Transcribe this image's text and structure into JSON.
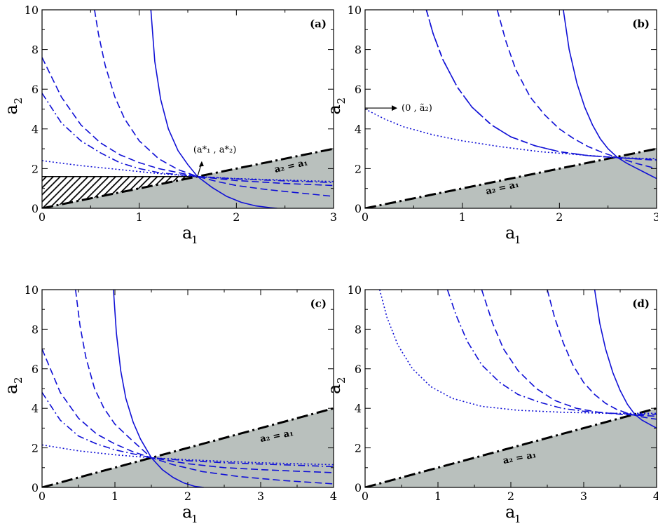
{
  "colors": {
    "curve": "#1010d6",
    "shade": "#b9c0bd",
    "frame": "#000000",
    "diag": "#000000"
  },
  "chart_data": [
    {
      "type": "line",
      "panel_label": "(a)",
      "xlabel": "a",
      "xlabel_sub": "1",
      "ylabel": "a",
      "ylabel_sub": "2",
      "xlim": [
        0,
        3
      ],
      "ylim": [
        0,
        10
      ],
      "xticks": [
        "0",
        "1",
        "2",
        "3"
      ],
      "yticks": [
        "0",
        "2",
        "4",
        "6",
        "8",
        "10"
      ],
      "diagonal_label": "a₂ = a₁",
      "hatched_region": {
        "x_from": 0,
        "x_to": 1.6,
        "y_max": 1.6
      },
      "annotation": "(a*₁ , a*₂)",
      "series": [
        {
          "style": "solid",
          "x": [
            1.12,
            1.16,
            1.22,
            1.3,
            1.4,
            1.5,
            1.6,
            1.75,
            1.9,
            2.05,
            2.2,
            2.35,
            2.42
          ],
          "y": [
            10.0,
            7.4,
            5.5,
            4.0,
            2.9,
            2.2,
            1.6,
            1.05,
            0.6,
            0.3,
            0.12,
            0.03,
            0.0
          ]
        },
        {
          "style": "dashed",
          "x": [
            0.54,
            0.58,
            0.65,
            0.75,
            0.85,
            1.0,
            1.2,
            1.4,
            1.6,
            1.8,
            2.0,
            2.3,
            2.6,
            3.0
          ],
          "y": [
            10.0,
            8.8,
            7.2,
            5.6,
            4.5,
            3.4,
            2.5,
            1.95,
            1.6,
            1.35,
            1.15,
            0.95,
            0.8,
            0.6
          ]
        },
        {
          "style": "dashed",
          "x": [
            0.0,
            0.2,
            0.4,
            0.6,
            0.8,
            1.0,
            1.2,
            1.4,
            1.6,
            2.0,
            2.5,
            3.0
          ],
          "y": [
            7.6,
            5.6,
            4.2,
            3.3,
            2.7,
            2.3,
            2.0,
            1.8,
            1.6,
            1.4,
            1.25,
            1.15
          ]
        },
        {
          "style": "dashdot",
          "x": [
            0.0,
            0.2,
            0.4,
            0.6,
            0.8,
            1.0,
            1.2,
            1.4,
            1.6,
            2.0,
            2.5,
            3.0
          ],
          "y": [
            5.8,
            4.3,
            3.4,
            2.8,
            2.3,
            2.0,
            1.8,
            1.7,
            1.6,
            1.48,
            1.38,
            1.3
          ]
        },
        {
          "style": "dotted",
          "x": [
            0.0,
            0.4,
            0.8,
            1.2,
            1.6,
            2.0,
            2.5,
            3.0
          ],
          "y": [
            2.4,
            2.15,
            1.95,
            1.75,
            1.6,
            1.5,
            1.42,
            1.35
          ]
        }
      ]
    },
    {
      "type": "line",
      "panel_label": "(b)",
      "xlabel": "a",
      "xlabel_sub": "1",
      "ylabel": "a",
      "ylabel_sub": "2",
      "xlim": [
        0,
        3
      ],
      "ylim": [
        0,
        10
      ],
      "xticks": [
        "0",
        "1",
        "2",
        "3"
      ],
      "yticks": [
        "0",
        "2",
        "4",
        "6",
        "8",
        "10"
      ],
      "diagonal_label": "a₂ = a₁",
      "annotation": "(0 , ã₂)",
      "series": [
        {
          "style": "solid",
          "x": [
            2.04,
            2.1,
            2.18,
            2.26,
            2.34,
            2.42,
            2.5,
            2.6,
            2.7,
            2.8,
            2.9,
            3.0
          ],
          "y": [
            10.0,
            8.0,
            6.3,
            5.1,
            4.2,
            3.5,
            3.0,
            2.55,
            2.25,
            2.0,
            1.75,
            1.5
          ]
        },
        {
          "style": "dashed",
          "x": [
            1.36,
            1.45,
            1.55,
            1.7,
            1.85,
            2.0,
            2.15,
            2.3,
            2.45,
            2.6,
            2.8,
            3.0
          ],
          "y": [
            10.0,
            8.4,
            7.0,
            5.6,
            4.7,
            4.0,
            3.5,
            3.1,
            2.8,
            2.55,
            2.25,
            2.0
          ]
        },
        {
          "style": "dashed",
          "x": [
            0.63,
            0.7,
            0.8,
            0.95,
            1.1,
            1.3,
            1.5,
            1.75,
            2.0,
            2.3,
            2.6,
            3.0
          ],
          "y": [
            10.0,
            8.8,
            7.5,
            6.1,
            5.1,
            4.2,
            3.6,
            3.15,
            2.85,
            2.65,
            2.55,
            2.42
          ]
        },
        {
          "style": "dashdot",
          "x": [
            0.63,
            0.7,
            0.8,
            0.95,
            1.1,
            1.3,
            1.5,
            1.75,
            2.0,
            2.3,
            2.6,
            3.0
          ],
          "y": [
            10.0,
            8.8,
            7.5,
            6.1,
            5.1,
            4.2,
            3.6,
            3.15,
            2.85,
            2.65,
            2.55,
            2.45
          ]
        },
        {
          "style": "dotted",
          "x": [
            0.0,
            0.2,
            0.4,
            0.7,
            1.0,
            1.4,
            1.8,
            2.2,
            2.6,
            3.0
          ],
          "y": [
            5.0,
            4.5,
            4.1,
            3.7,
            3.4,
            3.1,
            2.85,
            2.7,
            2.55,
            2.5
          ]
        }
      ]
    },
    {
      "type": "line",
      "panel_label": "(c)",
      "xlabel": "a",
      "xlabel_sub": "1",
      "ylabel": "a",
      "ylabel_sub": "2",
      "xlim": [
        0,
        4
      ],
      "ylim": [
        0,
        10
      ],
      "xticks": [
        "0",
        "1",
        "2",
        "3",
        "4"
      ],
      "yticks": [
        "0",
        "2",
        "4",
        "6",
        "8",
        "10"
      ],
      "diagonal_label": "a₂ = a₁",
      "series": [
        {
          "style": "solid",
          "x": [
            0.98,
            1.02,
            1.08,
            1.15,
            1.25,
            1.35,
            1.5,
            1.65,
            1.8,
            1.95,
            2.1,
            2.22
          ],
          "y": [
            10.0,
            7.8,
            5.9,
            4.5,
            3.3,
            2.45,
            1.5,
            0.9,
            0.5,
            0.22,
            0.05,
            0.0
          ]
        },
        {
          "style": "dashed",
          "x": [
            0.46,
            0.52,
            0.6,
            0.72,
            0.85,
            1.0,
            1.2,
            1.5,
            1.8,
            2.2,
            2.7,
            3.3,
            4.0
          ],
          "y": [
            10.0,
            8.2,
            6.6,
            5.0,
            4.0,
            3.2,
            2.5,
            1.5,
            1.15,
            0.8,
            0.55,
            0.35,
            0.18
          ]
        },
        {
          "style": "dashed",
          "x": [
            0.0,
            0.25,
            0.5,
            0.75,
            1.0,
            1.25,
            1.5,
            2.0,
            2.5,
            3.0,
            3.5,
            4.0
          ],
          "y": [
            7.0,
            4.8,
            3.5,
            2.7,
            2.2,
            1.8,
            1.5,
            1.2,
            1.0,
            0.9,
            0.82,
            0.75
          ]
        },
        {
          "style": "dashdot",
          "x": [
            0.0,
            0.25,
            0.5,
            0.75,
            1.0,
            1.25,
            1.5,
            2.0,
            2.5,
            3.0,
            3.5,
            4.0
          ],
          "y": [
            4.8,
            3.4,
            2.6,
            2.2,
            1.9,
            1.7,
            1.5,
            1.35,
            1.25,
            1.18,
            1.12,
            1.05
          ]
        },
        {
          "style": "dotted",
          "x": [
            0.0,
            0.5,
            1.0,
            1.5,
            2.0,
            2.5,
            3.0,
            3.5,
            4.0
          ],
          "y": [
            2.15,
            1.85,
            1.65,
            1.5,
            1.4,
            1.32,
            1.25,
            1.2,
            1.15
          ]
        }
      ]
    },
    {
      "type": "line",
      "panel_label": "(d)",
      "xlabel": "a",
      "xlabel_sub": "1",
      "ylabel": "a",
      "ylabel_sub": "2",
      "xlim": [
        0,
        4
      ],
      "ylim": [
        0,
        10
      ],
      "xticks": [
        "0",
        "1",
        "2",
        "3",
        "4"
      ],
      "yticks": [
        "0",
        "2",
        "4",
        "6",
        "8",
        "10"
      ],
      "diagonal_label": "a₂ = a₁",
      "series": [
        {
          "style": "solid",
          "x": [
            3.15,
            3.22,
            3.3,
            3.4,
            3.5,
            3.6,
            3.7,
            3.8,
            3.9,
            4.0
          ],
          "y": [
            10.0,
            8.3,
            7.0,
            5.8,
            4.9,
            4.2,
            3.7,
            3.4,
            3.2,
            3.0
          ]
        },
        {
          "style": "dashed",
          "x": [
            2.5,
            2.6,
            2.72,
            2.85,
            3.0,
            3.15,
            3.3,
            3.45,
            3.6,
            3.75,
            3.9,
            4.0
          ],
          "y": [
            10.0,
            8.6,
            7.3,
            6.2,
            5.3,
            4.7,
            4.25,
            3.95,
            3.75,
            3.6,
            3.5,
            3.45
          ]
        },
        {
          "style": "dashed",
          "x": [
            1.6,
            1.75,
            1.9,
            2.1,
            2.35,
            2.6,
            2.9,
            3.2,
            3.5,
            3.75,
            4.0
          ],
          "y": [
            10.0,
            8.3,
            7.0,
            5.9,
            5.0,
            4.4,
            4.0,
            3.8,
            3.7,
            3.65,
            3.6
          ]
        },
        {
          "style": "dashdot",
          "x": [
            1.13,
            1.25,
            1.4,
            1.6,
            1.85,
            2.1,
            2.4,
            2.7,
            3.0,
            3.4,
            3.75,
            4.0
          ],
          "y": [
            10.0,
            8.7,
            7.4,
            6.2,
            5.3,
            4.7,
            4.3,
            4.0,
            3.85,
            3.75,
            3.7,
            3.7
          ]
        },
        {
          "style": "dotted",
          "x": [
            0.2,
            0.3,
            0.45,
            0.65,
            0.9,
            1.2,
            1.6,
            2.1,
            2.7,
            3.3,
            3.75,
            4.0
          ],
          "y": [
            10.0,
            8.6,
            7.2,
            6.0,
            5.1,
            4.5,
            4.1,
            3.9,
            3.8,
            3.75,
            3.75,
            3.75
          ]
        }
      ]
    }
  ]
}
